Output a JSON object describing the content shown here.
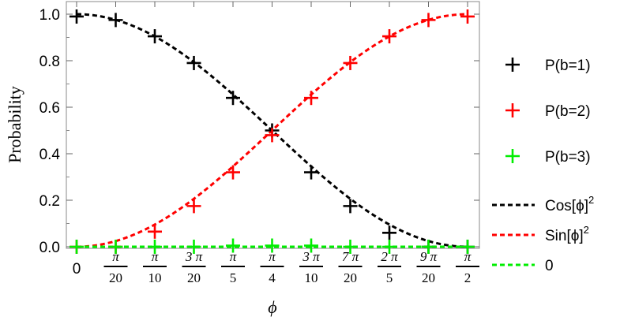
{
  "chart_data": {
    "type": "scatter",
    "xlabel": "ϕ",
    "ylabel": "Probability",
    "xlim": [
      0,
      1.5707963
    ],
    "ylim": [
      0,
      1
    ],
    "grid": false,
    "legend_position": "right",
    "x_ticks": [
      {
        "value": 0,
        "num": "0",
        "den": ""
      },
      {
        "value": 0.15708,
        "num": "π",
        "den": "20"
      },
      {
        "value": 0.31416,
        "num": "π",
        "den": "10"
      },
      {
        "value": 0.47124,
        "num": "3 π",
        "den": "20"
      },
      {
        "value": 0.62832,
        "num": "π",
        "den": "5"
      },
      {
        "value": 0.7854,
        "num": "π",
        "den": "4"
      },
      {
        "value": 0.94248,
        "num": "3 π",
        "den": "10"
      },
      {
        "value": 1.09956,
        "num": "7 π",
        "den": "20"
      },
      {
        "value": 1.25664,
        "num": "2 π",
        "den": "5"
      },
      {
        "value": 1.41372,
        "num": "9 π",
        "den": "20"
      },
      {
        "value": 1.5708,
        "num": "π",
        "den": "2"
      }
    ],
    "y_ticks": [
      "0.0",
      "0.2",
      "0.4",
      "0.6",
      "0.8",
      "1.0"
    ],
    "x": [
      0,
      0.15708,
      0.31416,
      0.47124,
      0.62832,
      0.7854,
      0.94248,
      1.09956,
      1.25664,
      1.41372,
      1.5708
    ],
    "series": [
      {
        "name": "P(b=1)",
        "color": "#000000",
        "marker": "plus",
        "values": [
          0.99,
          0.975,
          0.905,
          0.79,
          0.64,
          0.5,
          0.32,
          0.175,
          0.06,
          0.0,
          0.0
        ]
      },
      {
        "name": "P(b=2)",
        "color": "#ff0000",
        "marker": "plus",
        "values": [
          0.0,
          0.0,
          0.065,
          0.175,
          0.32,
          0.48,
          0.64,
          0.79,
          0.905,
          0.975,
          0.99
        ]
      },
      {
        "name": "P(b=3)",
        "color": "#00ee00",
        "marker": "plus",
        "values": [
          0.0,
          0.0,
          0.0,
          0.0,
          0.005,
          0.005,
          0.005,
          0.0,
          0.0,
          0.0,
          0.0
        ]
      }
    ],
    "curves": [
      {
        "name": "Cos[ϕ]",
        "sup": "2",
        "color": "#000000",
        "style": "dashed",
        "fn": "cos2"
      },
      {
        "name": "Sin[ϕ]",
        "sup": "2",
        "color": "#ff0000",
        "style": "dashed",
        "fn": "sin2"
      },
      {
        "name": "0",
        "sup": "",
        "color": "#00ee00",
        "style": "dashed",
        "fn": "zero"
      }
    ]
  }
}
